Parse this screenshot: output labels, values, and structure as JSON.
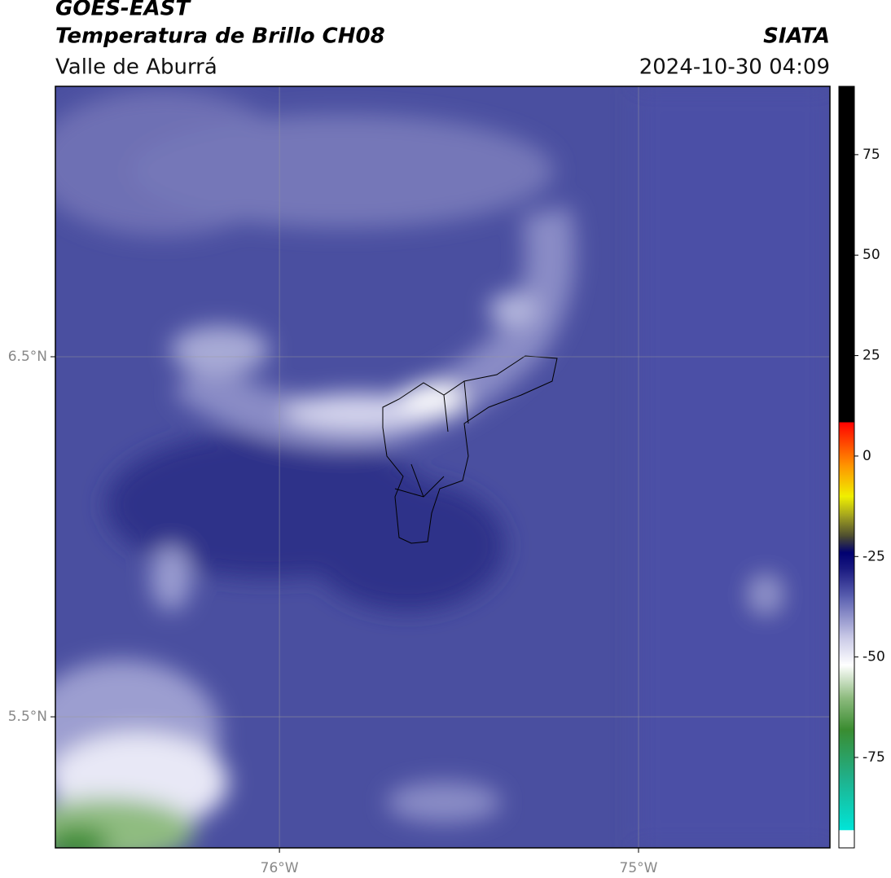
{
  "header": {
    "title": "GOES-EAST",
    "subtitle": "Temperatura de Brillo CH08",
    "region": "Valle de Aburrá",
    "source": "SIATA",
    "timestamp": "2024-10-30 04:09"
  },
  "map": {
    "xlim": [
      -76.624,
      -74.467
    ],
    "ylim": [
      5.136,
      7.251
    ],
    "xticks": [
      {
        "value": -76,
        "label": "76°W"
      },
      {
        "value": -75,
        "label": "75°W"
      }
    ],
    "yticks": [
      {
        "value": 6.5,
        "label": "6.5°N"
      },
      {
        "value": 5.5,
        "label": "5.5°N"
      }
    ]
  },
  "colorbar": {
    "lim": [
      -97.5,
      92
    ],
    "ticks": [
      75,
      50,
      25,
      0,
      -25,
      -50,
      -75
    ],
    "stops": [
      {
        "value": -97.5,
        "color": "#ffffff"
      },
      {
        "value": -93,
        "color": "#ffffff"
      },
      {
        "value": -93,
        "color": "#00e5d8"
      },
      {
        "value": -80,
        "color": "#20b08a"
      },
      {
        "value": -68,
        "color": "#3a8c30"
      },
      {
        "value": -60,
        "color": "#8fbc80"
      },
      {
        "value": -52,
        "color": "#ffffff"
      },
      {
        "value": -45,
        "color": "#c8c8e6"
      },
      {
        "value": -35,
        "color": "#5a5fb0"
      },
      {
        "value": -28,
        "color": "#1a1a80"
      },
      {
        "value": -24,
        "color": "#000070"
      },
      {
        "value": -20,
        "color": "#4a4a30"
      },
      {
        "value": -15,
        "color": "#a0a020"
      },
      {
        "value": -10,
        "color": "#f0f000"
      },
      {
        "value": -2,
        "color": "#ff9000"
      },
      {
        "value": 8.5,
        "color": "#ff0000"
      },
      {
        "value": 8.5,
        "color": "#000000"
      },
      {
        "value": 92,
        "color": "#000000"
      }
    ]
  }
}
